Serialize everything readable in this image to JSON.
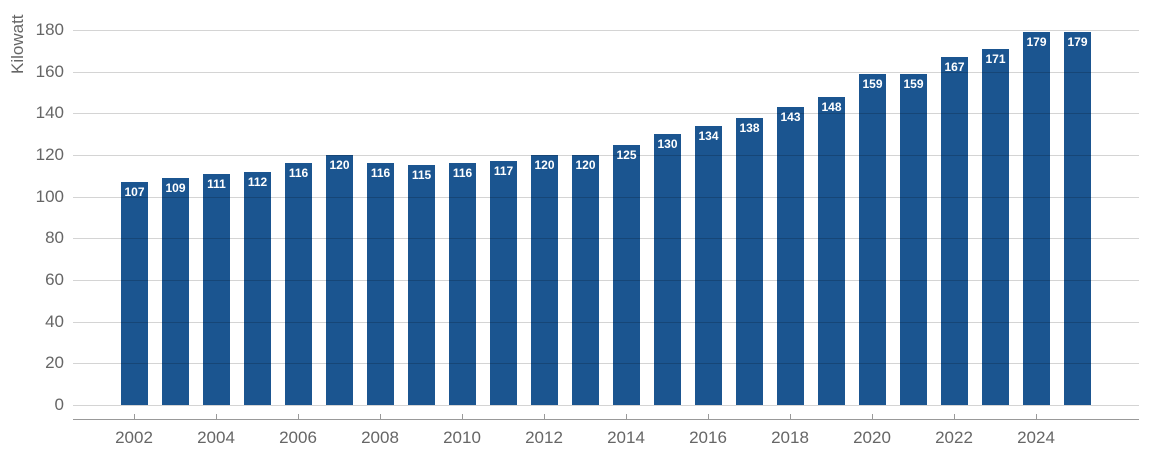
{
  "chart_data": {
    "type": "bar",
    "title": "",
    "xlabel": "",
    "ylabel": "Kilowatt",
    "categories": [
      "2002",
      "2003",
      "2004",
      "2005",
      "2006",
      "2007",
      "2008",
      "2009",
      "2010",
      "2011",
      "2012",
      "2013",
      "2014",
      "2015",
      "2016",
      "2017",
      "2018",
      "2019",
      "2020",
      "2021",
      "2022",
      "2023",
      "2024",
      "2025"
    ],
    "values": [
      107,
      109,
      111,
      112,
      116,
      120,
      116,
      115,
      116,
      117,
      120,
      120,
      125,
      130,
      134,
      138,
      143,
      148,
      159,
      159,
      167,
      171,
      179,
      179
    ],
    "value_labels_shown": true,
    "y_ticks": [
      "0",
      "20",
      "40",
      "60",
      "80",
      "100",
      "120",
      "140",
      "160",
      "180"
    ],
    "x_tick_labels": [
      "2002",
      "2004",
      "2006",
      "2008",
      "2010",
      "2012",
      "2014",
      "2016",
      "2018",
      "2020",
      "2022",
      "2024"
    ],
    "ylim": [
      0,
      180
    ],
    "grid": true,
    "legend": false,
    "colors": {
      "bar": "#1b5590",
      "gridline": "#d2d2d2",
      "axis_line": "#999999",
      "tick_label": "#666666",
      "value_label": "#ffffff",
      "background": "#ffffff"
    }
  }
}
